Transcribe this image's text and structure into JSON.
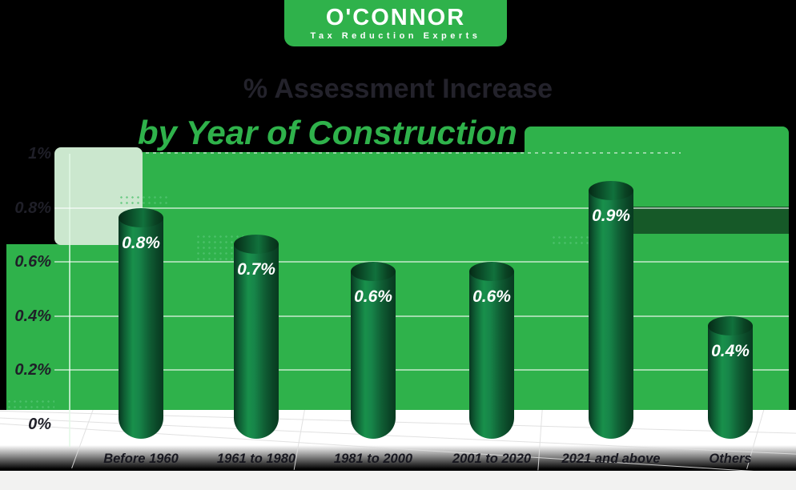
{
  "logo": {
    "text": "O'CONNOR",
    "tagline": "Tax Reduction Experts",
    "colors": {
      "tab_green": "#2fb24b",
      "text": "#ffffff"
    }
  },
  "title": {
    "line1": "% Assessment Increase",
    "line2": "by Year of Construction"
  },
  "chart_data": {
    "type": "bar",
    "title": "% Assessment Increase by Year of Construction",
    "categories": [
      "Before 1960",
      "1961 to 1980",
      "1981 to 2000",
      "2001 to 2020",
      "2021 and above",
      "Others"
    ],
    "values": [
      0.8,
      0.7,
      0.6,
      0.6,
      0.9,
      0.4
    ],
    "bar_labels": [
      "0.8%",
      "0.7%",
      "0.6%",
      "0.6%",
      "0.9%",
      "0.4%"
    ],
    "unit": "%",
    "xlabel": "",
    "ylabel": "",
    "ylim": [
      0,
      1
    ],
    "yticks": [
      {
        "label": "1%",
        "value": 1.0
      },
      {
        "label": "0.8%",
        "value": 0.8
      },
      {
        "label": "0.6%",
        "value": 0.6
      },
      {
        "label": "0.4%",
        "value": 0.4
      },
      {
        "label": "0.2%",
        "value": 0.2
      },
      {
        "label": "0%",
        "value": 0.0
      }
    ],
    "grid": true,
    "legend": false,
    "colors": {
      "panel_green": "#2fb24b",
      "pale_panel": "#cbe7ce",
      "cylinder_dark": "#083620",
      "cylinder_light": "#18904b",
      "value_text": "#ffffff",
      "axis_text": "#1f1f28",
      "gridline": "rgba(255,255,255,0.55)"
    }
  }
}
